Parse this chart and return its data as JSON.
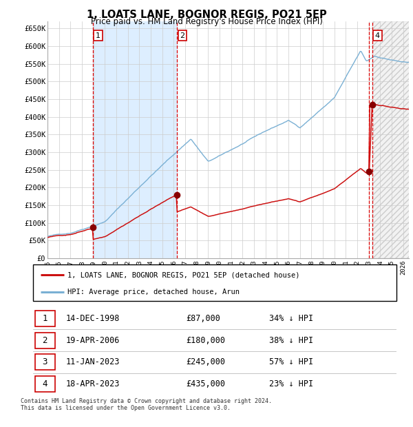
{
  "title": "1, LOATS LANE, BOGNOR REGIS, PO21 5EP",
  "subtitle": "Price paid vs. HM Land Registry's House Price Index (HPI)",
  "ylim": [
    0,
    670000
  ],
  "xlim_start": 1995.0,
  "xlim_end": 2026.5,
  "yticks": [
    0,
    50000,
    100000,
    150000,
    200000,
    250000,
    300000,
    350000,
    400000,
    450000,
    500000,
    550000,
    600000,
    650000
  ],
  "ytick_labels": [
    "£0",
    "£50K",
    "£100K",
    "£150K",
    "£200K",
    "£250K",
    "£300K",
    "£350K",
    "£400K",
    "£450K",
    "£500K",
    "£550K",
    "£600K",
    "£650K"
  ],
  "hpi_color": "#7ab0d4",
  "price_color": "#cc1111",
  "sale_dot_color": "#880000",
  "grid_color": "#cccccc",
  "shaded_region_color": "#ddeeff",
  "legend_entry1": "1, LOATS LANE, BOGNOR REGIS, PO21 5EP (detached house)",
  "legend_entry2": "HPI: Average price, detached house, Arun",
  "transactions": [
    {
      "id": 1,
      "date_str": "14-DEC-1998",
      "year": 1998.96,
      "price": 87000
    },
    {
      "id": 2,
      "date_str": "19-APR-2006",
      "year": 2006.3,
      "price": 180000
    },
    {
      "id": 3,
      "date_str": "11-JAN-2023",
      "year": 2023.04,
      "price": 245000
    },
    {
      "id": 4,
      "date_str": "18-APR-2023",
      "year": 2023.3,
      "price": 435000
    }
  ],
  "footnote1": "Contains HM Land Registry data © Crown copyright and database right 2024.",
  "footnote2": "This data is licensed under the Open Government Licence v3.0.",
  "table_rows": [
    {
      "id": 1,
      "date": "14-DEC-1998",
      "price": "£87,000",
      "pct": "34% ↓ HPI"
    },
    {
      "id": 2,
      "date": "19-APR-2006",
      "price": "£180,000",
      "pct": "38% ↓ HPI"
    },
    {
      "id": 3,
      "date": "11-JAN-2023",
      "price": "£245,000",
      "pct": "57% ↓ HPI"
    },
    {
      "id": 4,
      "date": "18-APR-2023",
      "price": "£435,000",
      "pct": "23% ↓ HPI"
    }
  ]
}
